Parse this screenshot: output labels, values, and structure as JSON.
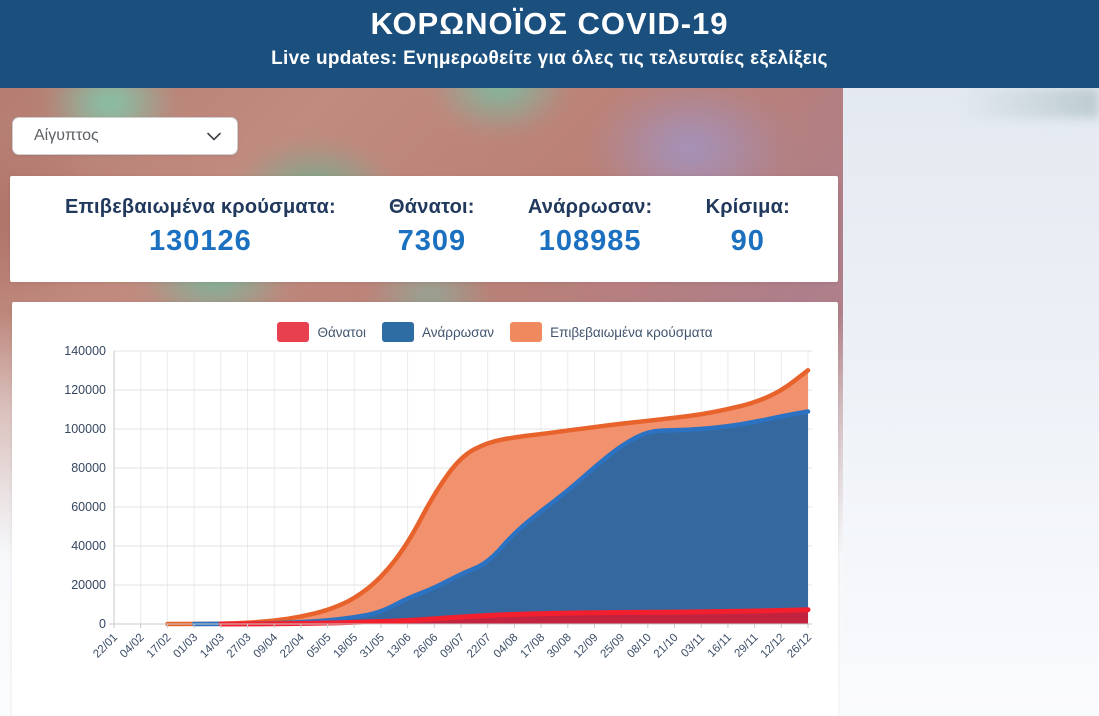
{
  "header": {
    "title": "ΚΟΡΩΝΟΪΟΣ COVID-19",
    "subtitle": "Live updates: Ενημερωθείτε για όλες τις τελευταίες εξελίξεις",
    "bg_color": "#1a4f7e"
  },
  "country_select": {
    "value": "Αίγυπτος",
    "chevron_icon": "chevron-down"
  },
  "stats": [
    {
      "label": "Επιβεβαιωμένα κρούσματα:",
      "value": "130126"
    },
    {
      "label": "Θάνατοι:",
      "value": "7309"
    },
    {
      "label": "Ανάρρωσαν:",
      "value": "108985"
    },
    {
      "label": "Κρίσιμα:",
      "value": "90"
    }
  ],
  "stat_colors": {
    "label": "#21395c",
    "value": "#1b70c0"
  },
  "chart_data": {
    "type": "area",
    "title": "",
    "xlabel": "",
    "ylabel": "",
    "ylim": [
      0,
      140000
    ],
    "yticks": [
      0,
      20000,
      40000,
      60000,
      80000,
      100000,
      120000,
      140000
    ],
    "grid": true,
    "legend_position": "top",
    "x": [
      "22/01",
      "04/02",
      "17/02",
      "01/03",
      "14/03",
      "27/03",
      "09/04",
      "22/04",
      "05/05",
      "18/05",
      "31/05",
      "13/06",
      "26/06",
      "09/07",
      "22/07",
      "04/08",
      "17/08",
      "30/08",
      "12/09",
      "25/09",
      "08/10",
      "21/10",
      "03/11",
      "16/11",
      "29/11",
      "12/12",
      "26/12"
    ],
    "series": [
      {
        "name": "Θάνατοι",
        "swatch_color": "#e8404e",
        "line_color": "#f2202f",
        "fill_color": "#c2233f",
        "line_width": 5,
        "values": [
          null,
          null,
          null,
          null,
          2,
          30,
          120,
          280,
          450,
          800,
          1300,
          1700,
          2600,
          3600,
          4400,
          4900,
          5300,
          5600,
          5800,
          5900,
          6000,
          6100,
          6250,
          6450,
          6650,
          6900,
          7309
        ]
      },
      {
        "name": "Ανάρρωσαν",
        "swatch_color": "#2e6da4",
        "line_color": "#2b72c2",
        "fill_color": "#35689e",
        "line_width": 4.5,
        "values": [
          null,
          null,
          null,
          1,
          25,
          120,
          400,
          900,
          1700,
          3400,
          6000,
          13300,
          18400,
          25700,
          31200,
          46700,
          58000,
          68300,
          80400,
          91600,
          98900,
          99400,
          99900,
          101400,
          103600,
          106500,
          108985
        ]
      },
      {
        "name": "Επιβεβαιωμένα κρούσματα",
        "swatch_color": "#f08a5e",
        "line_color": "#e7632b",
        "fill_color": "#f2916e",
        "line_width": 4.5,
        "values": [
          null,
          null,
          1,
          2,
          110,
          540,
          1700,
          3700,
          7000,
          12800,
          23500,
          41000,
          67000,
          86000,
          93200,
          95800,
          97400,
          99300,
          101000,
          102700,
          104200,
          105800,
          107500,
          110200,
          113500,
          119500,
          130126
        ]
      }
    ],
    "draw_order": [
      2,
      1,
      0
    ],
    "axis_color": "#c9c9c9",
    "grid_color_h": "#e3e3e3",
    "grid_color_v": "#ebebeb",
    "tick_label_color": "#3a4c66"
  }
}
